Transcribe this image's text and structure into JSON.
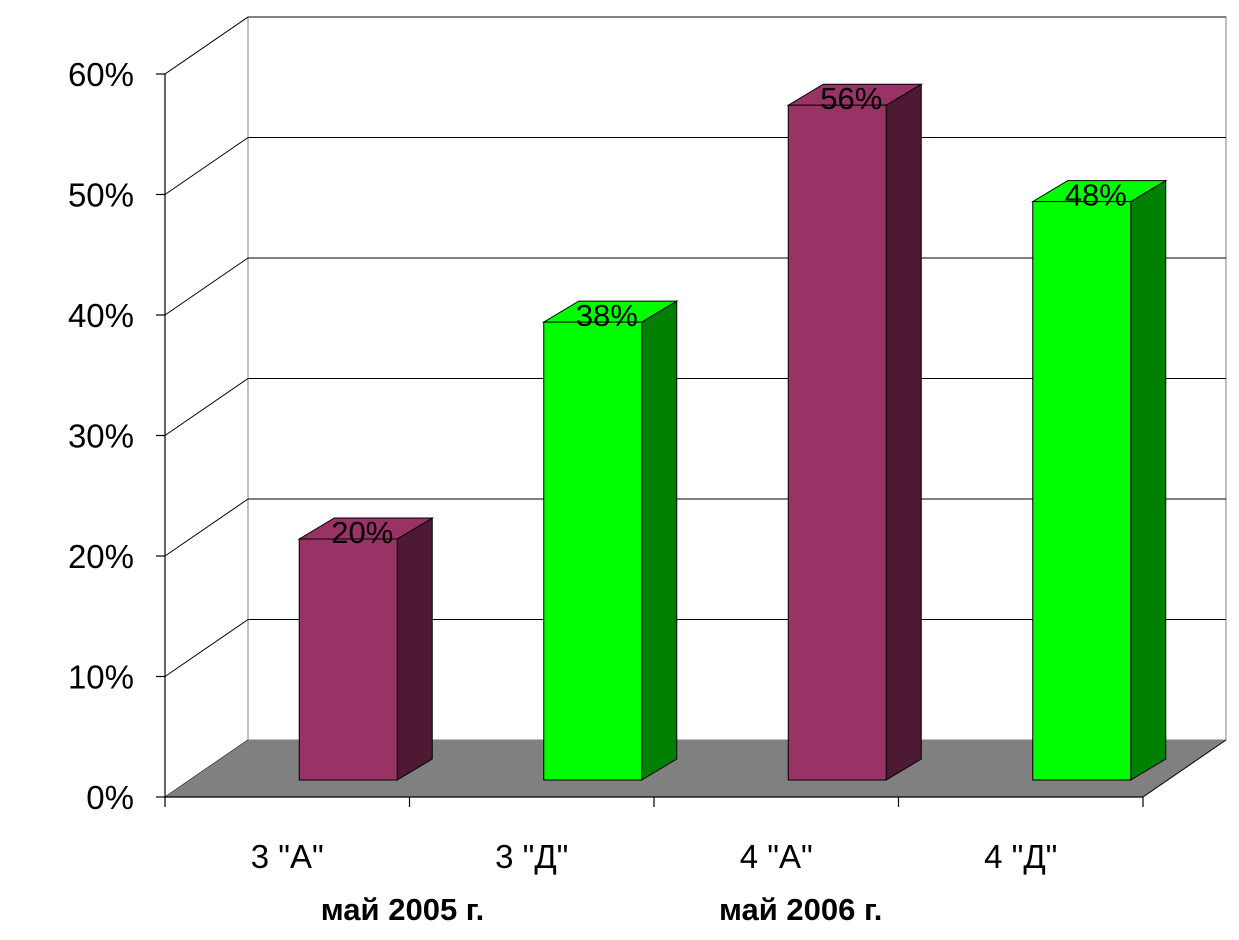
{
  "chart_data": {
    "type": "bar",
    "three_d": true,
    "categories": [
      "3 \"А\"",
      "3 \"Д\"",
      "4 \"А\"",
      "4 \"Д\""
    ],
    "values": [
      20,
      38,
      56,
      48
    ],
    "data_labels": [
      "20%",
      "38%",
      "56%",
      "48%"
    ],
    "bar_colors": [
      "#993366",
      "#00ff00",
      "#993366",
      "#00ff00"
    ],
    "bar_side_colors": [
      "#4d1933",
      "#008000",
      "#4d1933",
      "#008000"
    ],
    "floor_color": "#808080",
    "y_ticks": [
      "0%",
      "10%",
      "20%",
      "30%",
      "40%",
      "50%",
      "60%"
    ],
    "ylim": [
      0,
      60
    ],
    "grid": true,
    "group_labels": [
      "май 2005 г.",
      "май 2006 г."
    ],
    "title": "",
    "xlabel": "",
    "ylabel": ""
  }
}
